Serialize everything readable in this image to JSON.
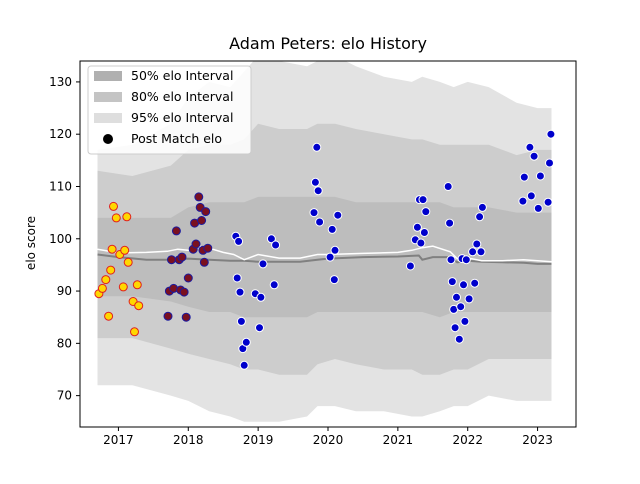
{
  "chart_data": {
    "type": "scatter",
    "title": "Adam Peters: elo History",
    "xlabel": "",
    "ylabel": "elo score",
    "xlim": [
      2016.45,
      2023.55
    ],
    "ylim": [
      64,
      134
    ],
    "x_ticks": [
      2017,
      2018,
      2019,
      2020,
      2021,
      2022,
      2023
    ],
    "x_tick_labels": [
      "2017",
      "2018",
      "2019",
      "2020",
      "2021",
      "2022",
      "2023"
    ],
    "y_ticks": [
      70,
      80,
      90,
      100,
      110,
      120,
      130
    ],
    "y_tick_labels": [
      "70",
      "80",
      "90",
      "100",
      "110",
      "120",
      "130"
    ],
    "grid": false,
    "legend_position": "upper-left",
    "legend": [
      {
        "label": "50% elo Interval",
        "kind": "band",
        "color": "#b0b0b0"
      },
      {
        "label": "80% elo Interval",
        "kind": "band",
        "color": "#c4c4c4"
      },
      {
        "label": "95% elo Interval",
        "kind": "band",
        "color": "#dedede"
      },
      {
        "label": "Post Match elo",
        "kind": "marker",
        "color": "#000000"
      }
    ],
    "colors": {
      "band95": "#e3e3e3",
      "band80": "#cdcdcd",
      "band50": "#bdbdbd",
      "median": "#808080",
      "mean": "#ffffff",
      "point_blue": "#0000cc",
      "point_darkred": "#7a1020",
      "point_yellow": "#ffd700"
    },
    "bands": {
      "x": [
        2016.7,
        2017.2,
        2017.75,
        2018.0,
        2018.3,
        2018.6,
        2018.8,
        2019.0,
        2019.3,
        2019.7,
        2019.85,
        2020.1,
        2020.4,
        2020.8,
        2021.2,
        2021.35,
        2021.6,
        2021.8,
        2022.0,
        2022.3,
        2022.7,
        2023.0,
        2023.2
      ],
      "upper95": [
        117,
        118,
        122,
        127,
        130,
        129,
        132,
        135,
        134,
        133,
        134,
        135,
        133,
        131,
        130,
        131,
        130,
        129,
        130,
        129,
        126,
        125,
        125
      ],
      "lower95": [
        72,
        72,
        70,
        69,
        67,
        66,
        65,
        65,
        65,
        66,
        68,
        68,
        67,
        67,
        66,
        66,
        67,
        68,
        68,
        70,
        69,
        69,
        69
      ],
      "upper80": [
        113,
        112,
        114,
        117,
        118,
        118,
        119,
        122,
        121,
        121,
        122,
        122,
        121,
        120,
        119,
        119,
        118,
        118,
        118,
        118,
        116,
        117,
        117
      ],
      "lower80": [
        81,
        81,
        79,
        78,
        77,
        76,
        75,
        75,
        74,
        74,
        76,
        77,
        76,
        75,
        75,
        74,
        74,
        75,
        75,
        77,
        77,
        77,
        77
      ],
      "upper50": [
        104,
        104,
        104,
        106,
        107,
        107,
        107,
        108,
        108,
        108,
        108,
        108,
        107,
        107,
        107,
        107,
        107,
        106,
        106,
        106,
        105,
        105,
        105
      ],
      "lower50": [
        89,
        89,
        88,
        87,
        86,
        86,
        85,
        85,
        85,
        85,
        86,
        86,
        86,
        86,
        86,
        86,
        85,
        86,
        86,
        86,
        86,
        86,
        86
      ]
    },
    "median_line": {
      "x": [
        2016.7,
        2017.0,
        2017.4,
        2017.7,
        2018.0,
        2018.3,
        2018.6,
        2018.8,
        2019.0,
        2019.3,
        2019.6,
        2019.85,
        2020.0,
        2020.5,
        2021.0,
        2021.3,
        2021.35,
        2021.5,
        2021.75,
        2021.85,
        2022.0,
        2022.2,
        2022.5,
        2022.8,
        2023.0,
        2023.2
      ],
      "y": [
        97.0,
        96.5,
        96.0,
        96.0,
        96.2,
        96.0,
        95.8,
        95.8,
        95.6,
        95.6,
        95.6,
        96.0,
        96.2,
        96.5,
        96.6,
        96.8,
        96.0,
        96.5,
        96.5,
        95.5,
        95.8,
        95.6,
        95.5,
        95.4,
        95.2,
        95.2
      ]
    },
    "mean_line": {
      "x": [
        2016.7,
        2017.0,
        2017.4,
        2017.7,
        2017.85,
        2018.0,
        2018.15,
        2018.3,
        2018.5,
        2018.65,
        2018.8,
        2019.0,
        2019.3,
        2019.6,
        2019.85,
        2020.0,
        2020.5,
        2021.0,
        2021.2,
        2021.35,
        2021.5,
        2021.75,
        2021.85,
        2021.95,
        2022.05,
        2022.2,
        2022.5,
        2022.8,
        2023.0,
        2023.2
      ],
      "y": [
        98.0,
        97.3,
        97.4,
        97.6,
        98.0,
        97.8,
        98.6,
        98.2,
        97.4,
        97.0,
        96.0,
        97.0,
        96.3,
        96.3,
        97.0,
        97.0,
        97.2,
        97.4,
        97.8,
        98.3,
        98.6,
        97.5,
        96.2,
        95.8,
        96.2,
        95.8,
        95.8,
        96.0,
        95.8,
        95.6
      ]
    },
    "points": [
      {
        "x": 2016.72,
        "y": 89.5,
        "c": "yellow"
      },
      {
        "x": 2016.77,
        "y": 90.5,
        "c": "yellow"
      },
      {
        "x": 2016.82,
        "y": 92.2,
        "c": "yellow"
      },
      {
        "x": 2016.86,
        "y": 85.2,
        "c": "yellow"
      },
      {
        "x": 2016.89,
        "y": 94.0,
        "c": "yellow"
      },
      {
        "x": 2016.91,
        "y": 98.0,
        "c": "yellow"
      },
      {
        "x": 2016.93,
        "y": 106.2,
        "c": "yellow"
      },
      {
        "x": 2016.97,
        "y": 104.0,
        "c": "yellow"
      },
      {
        "x": 2017.02,
        "y": 97.0,
        "c": "yellow"
      },
      {
        "x": 2017.07,
        "y": 90.8,
        "c": "yellow"
      },
      {
        "x": 2017.09,
        "y": 97.8,
        "c": "yellow"
      },
      {
        "x": 2017.12,
        "y": 104.2,
        "c": "yellow"
      },
      {
        "x": 2017.14,
        "y": 95.5,
        "c": "yellow"
      },
      {
        "x": 2017.21,
        "y": 88.0,
        "c": "yellow"
      },
      {
        "x": 2017.23,
        "y": 82.2,
        "c": "yellow"
      },
      {
        "x": 2017.27,
        "y": 91.2,
        "c": "yellow"
      },
      {
        "x": 2017.29,
        "y": 87.2,
        "c": "yellow"
      },
      {
        "x": 2017.71,
        "y": 85.2,
        "c": "darkred"
      },
      {
        "x": 2017.73,
        "y": 90.0,
        "c": "darkred"
      },
      {
        "x": 2017.76,
        "y": 96.0,
        "c": "darkred"
      },
      {
        "x": 2017.79,
        "y": 90.5,
        "c": "darkred"
      },
      {
        "x": 2017.83,
        "y": 101.5,
        "c": "darkred"
      },
      {
        "x": 2017.87,
        "y": 96.0,
        "c": "darkred"
      },
      {
        "x": 2017.89,
        "y": 90.2,
        "c": "darkred"
      },
      {
        "x": 2017.91,
        "y": 96.5,
        "c": "darkred"
      },
      {
        "x": 2017.94,
        "y": 89.8,
        "c": "darkred"
      },
      {
        "x": 2017.97,
        "y": 85.0,
        "c": "darkred"
      },
      {
        "x": 2018.0,
        "y": 92.5,
        "c": "darkred"
      },
      {
        "x": 2018.07,
        "y": 98.0,
        "c": "darkred"
      },
      {
        "x": 2018.09,
        "y": 103.0,
        "c": "darkred"
      },
      {
        "x": 2018.11,
        "y": 99.0,
        "c": "darkred"
      },
      {
        "x": 2018.15,
        "y": 108.0,
        "c": "darkred"
      },
      {
        "x": 2018.17,
        "y": 106.0,
        "c": "darkred"
      },
      {
        "x": 2018.19,
        "y": 103.5,
        "c": "darkred"
      },
      {
        "x": 2018.21,
        "y": 97.8,
        "c": "darkred"
      },
      {
        "x": 2018.23,
        "y": 95.5,
        "c": "darkred"
      },
      {
        "x": 2018.25,
        "y": 105.2,
        "c": "darkred"
      },
      {
        "x": 2018.28,
        "y": 98.2,
        "c": "darkred"
      },
      {
        "x": 2018.68,
        "y": 100.5,
        "c": "blue"
      },
      {
        "x": 2018.7,
        "y": 92.5,
        "c": "blue"
      },
      {
        "x": 2018.72,
        "y": 99.5,
        "c": "blue"
      },
      {
        "x": 2018.74,
        "y": 89.8,
        "c": "blue"
      },
      {
        "x": 2018.76,
        "y": 84.2,
        "c": "blue"
      },
      {
        "x": 2018.78,
        "y": 79.0,
        "c": "blue"
      },
      {
        "x": 2018.8,
        "y": 75.8,
        "c": "blue"
      },
      {
        "x": 2018.83,
        "y": 80.2,
        "c": "blue"
      },
      {
        "x": 2018.96,
        "y": 89.5,
        "c": "blue"
      },
      {
        "x": 2019.02,
        "y": 83.0,
        "c": "blue"
      },
      {
        "x": 2019.04,
        "y": 88.8,
        "c": "blue"
      },
      {
        "x": 2019.07,
        "y": 95.2,
        "c": "blue"
      },
      {
        "x": 2019.19,
        "y": 100.0,
        "c": "blue"
      },
      {
        "x": 2019.23,
        "y": 91.2,
        "c": "blue"
      },
      {
        "x": 2019.25,
        "y": 98.8,
        "c": "blue"
      },
      {
        "x": 2019.8,
        "y": 105.0,
        "c": "blue"
      },
      {
        "x": 2019.82,
        "y": 110.8,
        "c": "blue"
      },
      {
        "x": 2019.84,
        "y": 117.5,
        "c": "blue"
      },
      {
        "x": 2019.86,
        "y": 109.2,
        "c": "blue"
      },
      {
        "x": 2019.88,
        "y": 103.2,
        "c": "blue"
      },
      {
        "x": 2020.03,
        "y": 96.5,
        "c": "blue"
      },
      {
        "x": 2020.06,
        "y": 101.8,
        "c": "blue"
      },
      {
        "x": 2020.09,
        "y": 92.2,
        "c": "blue"
      },
      {
        "x": 2020.1,
        "y": 97.8,
        "c": "blue"
      },
      {
        "x": 2020.14,
        "y": 104.5,
        "c": "blue"
      },
      {
        "x": 2021.18,
        "y": 94.8,
        "c": "blue"
      },
      {
        "x": 2021.25,
        "y": 99.8,
        "c": "blue"
      },
      {
        "x": 2021.28,
        "y": 102.2,
        "c": "blue"
      },
      {
        "x": 2021.31,
        "y": 107.5,
        "c": "blue"
      },
      {
        "x": 2021.33,
        "y": 99.2,
        "c": "blue"
      },
      {
        "x": 2021.36,
        "y": 107.5,
        "c": "blue"
      },
      {
        "x": 2021.38,
        "y": 101.2,
        "c": "blue"
      },
      {
        "x": 2021.4,
        "y": 105.2,
        "c": "blue"
      },
      {
        "x": 2021.72,
        "y": 110.0,
        "c": "blue"
      },
      {
        "x": 2021.74,
        "y": 103.0,
        "c": "blue"
      },
      {
        "x": 2021.76,
        "y": 96.0,
        "c": "blue"
      },
      {
        "x": 2021.78,
        "y": 91.8,
        "c": "blue"
      },
      {
        "x": 2021.8,
        "y": 86.5,
        "c": "blue"
      },
      {
        "x": 2021.82,
        "y": 83.0,
        "c": "blue"
      },
      {
        "x": 2021.84,
        "y": 88.8,
        "c": "blue"
      },
      {
        "x": 2021.88,
        "y": 80.8,
        "c": "blue"
      },
      {
        "x": 2021.9,
        "y": 87.0,
        "c": "blue"
      },
      {
        "x": 2021.92,
        "y": 96.2,
        "c": "blue"
      },
      {
        "x": 2021.94,
        "y": 91.2,
        "c": "blue"
      },
      {
        "x": 2021.96,
        "y": 84.2,
        "c": "blue"
      },
      {
        "x": 2021.98,
        "y": 96.0,
        "c": "blue"
      },
      {
        "x": 2022.02,
        "y": 88.5,
        "c": "blue"
      },
      {
        "x": 2022.07,
        "y": 97.5,
        "c": "blue"
      },
      {
        "x": 2022.1,
        "y": 91.5,
        "c": "blue"
      },
      {
        "x": 2022.13,
        "y": 99.0,
        "c": "blue"
      },
      {
        "x": 2022.17,
        "y": 104.2,
        "c": "blue"
      },
      {
        "x": 2022.19,
        "y": 97.5,
        "c": "blue"
      },
      {
        "x": 2022.21,
        "y": 106.0,
        "c": "blue"
      },
      {
        "x": 2022.79,
        "y": 107.2,
        "c": "blue"
      },
      {
        "x": 2022.81,
        "y": 111.8,
        "c": "blue"
      },
      {
        "x": 2022.89,
        "y": 117.5,
        "c": "blue"
      },
      {
        "x": 2022.91,
        "y": 108.2,
        "c": "blue"
      },
      {
        "x": 2022.95,
        "y": 115.8,
        "c": "blue"
      },
      {
        "x": 2023.01,
        "y": 105.8,
        "c": "blue"
      },
      {
        "x": 2023.04,
        "y": 112.0,
        "c": "blue"
      },
      {
        "x": 2023.15,
        "y": 107.0,
        "c": "blue"
      },
      {
        "x": 2023.17,
        "y": 114.5,
        "c": "blue"
      },
      {
        "x": 2023.19,
        "y": 120.0,
        "c": "blue"
      }
    ]
  }
}
